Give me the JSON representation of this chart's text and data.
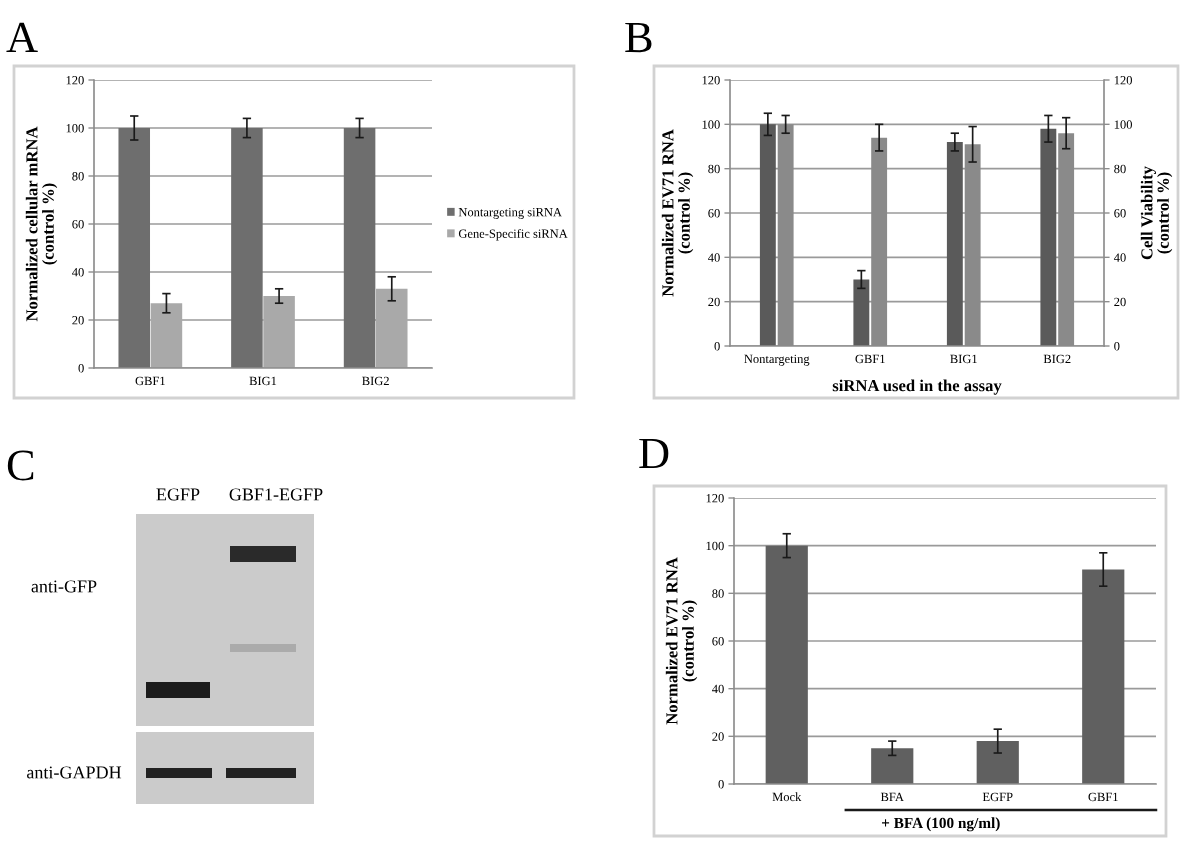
{
  "chart_data": [
    {
      "type": "bar",
      "title": "A",
      "ylabel": "Normalized cellular mRNA\n(control %)",
      "categories": [
        "GBF1",
        "BIG1",
        "BIG2"
      ],
      "series": [
        {
          "name": "Nontargeting siRNA",
          "color": "#6e6e6e",
          "values": [
            100,
            100,
            100
          ],
          "errors": [
            5,
            4,
            4
          ]
        },
        {
          "name": "Gene-Specific siRNA",
          "color": "#a9a9a9",
          "values": [
            27,
            30,
            33
          ],
          "errors": [
            4,
            3,
            5
          ]
        }
      ],
      "ylim": [
        0,
        120
      ],
      "yticks": [
        0,
        20,
        40,
        60,
        80,
        100,
        120
      ],
      "grid": "y",
      "legend": "right"
    },
    {
      "type": "bar",
      "title": "B",
      "xlabel": "siRNA used in the assay",
      "ylabel": "Normalized EV71 RNA\n(control %)",
      "y2label": "Cell Viability\n(control %)",
      "categories": [
        "Nontargeting",
        "GBF1",
        "BIG1",
        "BIG2"
      ],
      "series": [
        {
          "color": "#5a5a5a",
          "values": [
            100,
            30,
            92,
            98
          ],
          "errors": [
            5,
            4,
            4,
            6
          ]
        },
        {
          "color": "#8a8a8a",
          "axis": "y2",
          "values": [
            100,
            94,
            91,
            96
          ],
          "errors": [
            4,
            6,
            8,
            7
          ]
        }
      ],
      "ylim": [
        0,
        120
      ],
      "yticks": [
        0,
        20,
        40,
        60,
        80,
        100,
        120
      ],
      "y2lim": [
        0,
        120
      ],
      "y2ticks": [
        0,
        20,
        40,
        60,
        80,
        100,
        120
      ],
      "grid": "y"
    },
    {
      "type": "other",
      "title": "C",
      "annotations": [
        "EGFP",
        "GBF1-EGFP",
        "anti-GFP",
        "anti-GAPDH"
      ]
    },
    {
      "type": "bar",
      "title": "D",
      "ylabel": "Normalized EV71 RNA\n(control %)",
      "categories": [
        "Mock",
        "BFA",
        "EGFP",
        "GBF1"
      ],
      "values": [
        100,
        15,
        18,
        90
      ],
      "errors": [
        5,
        3,
        5,
        7
      ],
      "color": "#606060",
      "ylim": [
        0,
        120
      ],
      "yticks": [
        0,
        20,
        40,
        60,
        80,
        100,
        120
      ],
      "grid": "y",
      "annotations": [
        "+ BFA (100 ng/ml)"
      ]
    }
  ]
}
